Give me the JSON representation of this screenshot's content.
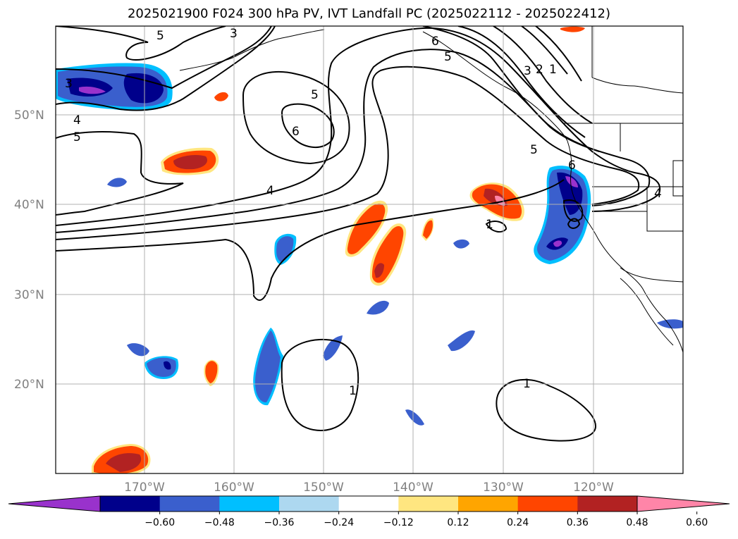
{
  "title": "2025021900 F024 300 hPa PV, IVT Landfall PC (2025022112 - 2025022412)",
  "map": {
    "lat_labels": [
      "50°N",
      "40°N",
      "30°N",
      "20°N"
    ],
    "lon_labels": [
      "170°W",
      "160°W",
      "150°W",
      "140°W",
      "130°W",
      "120°W"
    ],
    "grid": true,
    "contour_variable": "300 hPa PV",
    "contour_labels": [
      "1",
      "2",
      "3",
      "4",
      "5",
      "6"
    ],
    "shaded_variable": "IVT Landfall PC"
  },
  "colorbar": {
    "ticks": [
      "−0.60",
      "−0.48",
      "−0.36",
      "−0.24",
      "−0.12",
      "0.12",
      "0.24",
      "0.36",
      "0.48",
      "0.60"
    ],
    "colors": [
      "#9932cc",
      "#00008b",
      "#3a5fcd",
      "#00bfff",
      "#add8f0",
      "#ffffff",
      "#ffe680",
      "#ffa500",
      "#ff4500",
      "#b22222",
      "#ff85a8"
    ],
    "extend": "both"
  }
}
